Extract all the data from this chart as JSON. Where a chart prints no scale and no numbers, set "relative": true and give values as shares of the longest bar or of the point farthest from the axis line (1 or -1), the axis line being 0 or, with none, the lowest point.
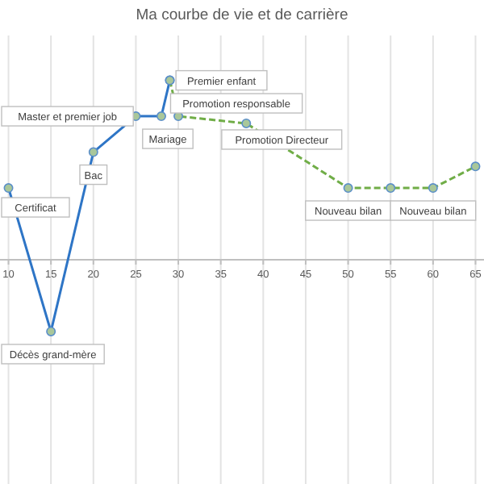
{
  "chart_data": {
    "type": "line",
    "title": "Ma courbe de vie et de carrière",
    "relative": true,
    "xlim": [
      9,
      66
    ],
    "xticks": [
      10,
      15,
      20,
      25,
      30,
      35,
      40,
      45,
      50,
      55,
      60,
      65
    ],
    "grid": "x",
    "marker": "circle",
    "series": [
      {
        "color": "#2e75c6",
        "line_style": "solid",
        "x": [
          10,
          15,
          20,
          25,
          28,
          29
        ],
        "values": [
          0.4,
          -0.4,
          0.6,
          0.8,
          0.8,
          1
        ]
      },
      {
        "color": "#70ad47",
        "line_style": "dashed",
        "x": [
          29,
          30,
          38,
          50,
          55,
          60,
          65
        ],
        "values": [
          1,
          0.8,
          0.76,
          0.4,
          0.4,
          0.4,
          0.52
        ]
      }
    ],
    "annotations": [
      {
        "text": "Certificat",
        "x": 10,
        "y": 0.4
      },
      {
        "text": "Décès grand-mère",
        "x": 15,
        "y": -0.4
      },
      {
        "text": "Bac",
        "x": 20,
        "y": 0.6
      },
      {
        "text": "Master et premier job",
        "x": 25,
        "y": 0.8
      },
      {
        "text": "Mariage",
        "x": 28,
        "y": 0.8
      },
      {
        "text": "Premier enfant",
        "x": 29,
        "y": 1
      },
      {
        "text": "Promotion responsable",
        "x": 30,
        "y": 0.8
      },
      {
        "text": "Promotion Directeur",
        "x": 38,
        "y": 0.76
      },
      {
        "text": "Nouveau bilan",
        "x": 50,
        "y": 0.4
      },
      {
        "text": "Nouveau bilan",
        "x": 60,
        "y": 0.4
      }
    ]
  }
}
